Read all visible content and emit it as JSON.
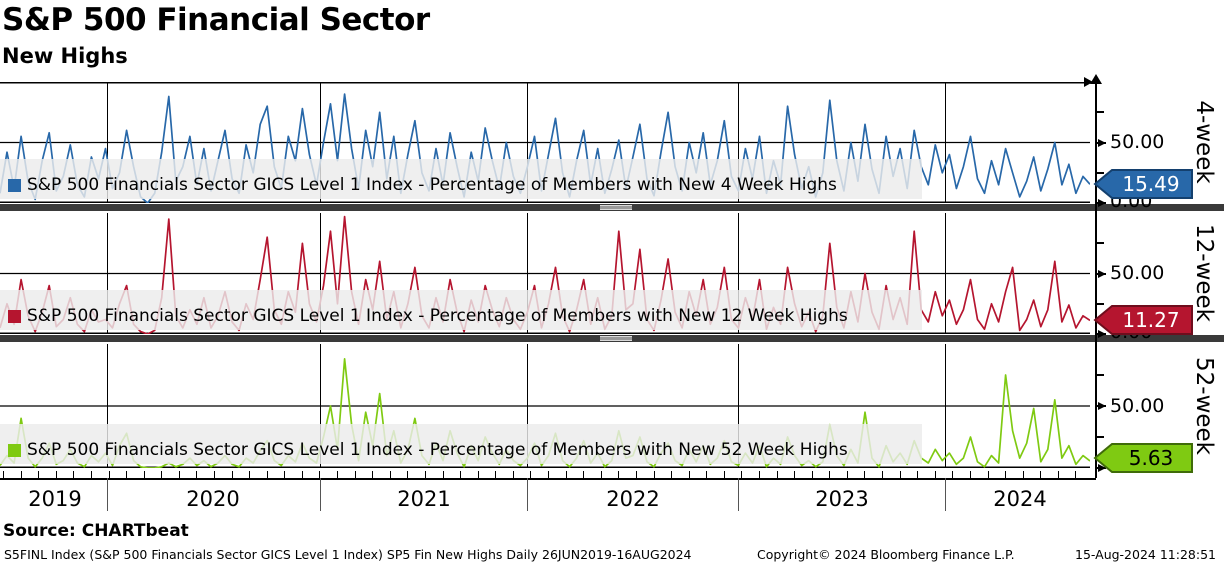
{
  "header": {
    "title": "S&P 500 Financial Sector",
    "subtitle": "New Highs"
  },
  "panels": [
    {
      "axis_label": "4-week",
      "legend": "S&P 500 Financials Sector GICS Level 1 Index - Percentage of Members with New 4 Week Highs",
      "last_value": "15.49",
      "tick_labels": [
        "50.00",
        "0.00"
      ],
      "color": "#2868a9",
      "badge_border": "#14406e",
      "badge_text_color": "#ffffff"
    },
    {
      "axis_label": "12-week",
      "legend": "S&P 500 Financials Sector GICS Level 1 Index - Percentage of Members with New 12 Week Highs",
      "last_value": "11.27",
      "tick_labels": [
        "50.00",
        "0.00"
      ],
      "color": "#b5152f",
      "badge_border": "#6e0d1d",
      "badge_text_color": "#ffffff"
    },
    {
      "axis_label": "52-week",
      "legend": "S&P 500 Financials Sector GICS Level 1 Index - Percentage of Members with New 52 Week Highs",
      "last_value": "5.63",
      "tick_labels": [
        "50.00",
        "0.00"
      ],
      "color": "#7fca12",
      "badge_border": "#3f6b09",
      "badge_text_color": "#000000"
    }
  ],
  "x_axis": {
    "years": [
      "2019",
      "2020",
      "2021",
      "2022",
      "2023",
      "2024"
    ]
  },
  "footer": {
    "source": "Source: CHARTbeat",
    "left": "S5FINL Index (S&P 500 Financials Sector GICS Level 1 Index) SP5 Fin New Highs  Daily 26JUN2019-16AUG2024",
    "copyright": "Copyright© 2024 Bloomberg Finance L.P.",
    "timestamp": "15-Aug-2024 11:28:51"
  },
  "chart_data": {
    "type": "line",
    "title": "S&P 500 Financial Sector - New Highs",
    "x_range": [
      "26JUN2019",
      "16AUG2024"
    ],
    "x_tick_labels": [
      "2019",
      "2020",
      "2021",
      "2022",
      "2023",
      "2024"
    ],
    "ylim": [
      0,
      100
    ],
    "y_tick_labels": [
      "50.00",
      "0.00"
    ],
    "grid": true,
    "legend_position": "inside-bottom-left",
    "series": [
      {
        "name": "S&P 500 Financials Sector GICS Level 1 Index - Percentage of Members with New 4 Week Highs",
        "panel": "4-week",
        "color": "#2868a9",
        "last_value": 15.49,
        "values": [
          8,
          42,
          12,
          55,
          18,
          3,
          35,
          58,
          10,
          22,
          48,
          15,
          5,
          38,
          20,
          45,
          12,
          25,
          60,
          30,
          5,
          0,
          8,
          42,
          88,
          18,
          30,
          55,
          15,
          45,
          10,
          35,
          60,
          20,
          8,
          48,
          25,
          65,
          80,
          30,
          12,
          55,
          35,
          78,
          40,
          15,
          50,
          82,
          35,
          90,
          45,
          12,
          60,
          30,
          75,
          20,
          55,
          8,
          40,
          68,
          25,
          10,
          45,
          15,
          58,
          30,
          5,
          42,
          18,
          62,
          35,
          12,
          50,
          22,
          8,
          30,
          55,
          10,
          40,
          70,
          25,
          5,
          35,
          60,
          15,
          45,
          8,
          28,
          52,
          12,
          38,
          65,
          20,
          6,
          42,
          75,
          30,
          10,
          50,
          25,
          58,
          15,
          35,
          68,
          22,
          10,
          45,
          20,
          55,
          8,
          35,
          15,
          80,
          40,
          12,
          30,
          5,
          25,
          85,
          35,
          10,
          50,
          18,
          65,
          28,
          8,
          55,
          22,
          45,
          12,
          60,
          30,
          15,
          48,
          25,
          40,
          12,
          30,
          55,
          20,
          8,
          35,
          15,
          45,
          25,
          5,
          18,
          38,
          10,
          28,
          50,
          15,
          32,
          8,
          22,
          15.49
        ]
      },
      {
        "name": "S&P 500 Financials Sector GICS Level 1 Index - Percentage of Members with New 12 Week Highs",
        "panel": "12-week",
        "color": "#b5152f",
        "last_value": 11.27,
        "values": [
          5,
          25,
          8,
          45,
          15,
          2,
          18,
          40,
          6,
          12,
          30,
          8,
          2,
          20,
          10,
          12,
          5,
          25,
          40,
          8,
          2,
          0,
          3,
          30,
          95,
          15,
          5,
          20,
          8,
          30,
          5,
          15,
          35,
          10,
          3,
          25,
          12,
          45,
          80,
          20,
          8,
          35,
          18,
          75,
          25,
          10,
          40,
          85,
          25,
          97,
          35,
          8,
          45,
          20,
          60,
          12,
          35,
          5,
          25,
          55,
          15,
          5,
          30,
          10,
          45,
          18,
          2,
          28,
          10,
          40,
          20,
          6,
          30,
          12,
          4,
          18,
          40,
          5,
          25,
          55,
          15,
          2,
          20,
          45,
          8,
          30,
          4,
          15,
          85,
          20,
          25,
          70,
          12,
          3,
          28,
          62,
          18,
          5,
          35,
          15,
          45,
          8,
          22,
          55,
          12,
          5,
          30,
          12,
          45,
          4,
          22,
          8,
          55,
          25,
          6,
          18,
          2,
          15,
          75,
          22,
          5,
          35,
          10,
          50,
          18,
          4,
          40,
          12,
          30,
          8,
          85,
          20,
          10,
          35,
          15,
          28,
          8,
          20,
          45,
          12,
          4,
          25,
          10,
          35,
          55,
          3,
          12,
          28,
          6,
          20,
          60,
          10,
          24,
          5,
          15,
          11.27
        ]
      },
      {
        "name": "S&P 500 Financials Sector GICS Level 1 Index - Percentage of Members with New 52 Week Highs",
        "panel": "52-week",
        "color": "#7fca12",
        "last_value": 5.63,
        "values": [
          2,
          10,
          4,
          40,
          8,
          1,
          8,
          20,
          3,
          6,
          15,
          4,
          1,
          10,
          5,
          12,
          2,
          18,
          28,
          6,
          1,
          0,
          0,
          1,
          4,
          1,
          3,
          8,
          2,
          6,
          1,
          4,
          10,
          3,
          1,
          8,
          4,
          14,
          22,
          6,
          2,
          10,
          5,
          20,
          8,
          4,
          25,
          50,
          15,
          88,
          35,
          6,
          45,
          18,
          60,
          10,
          30,
          4,
          15,
          40,
          10,
          3,
          20,
          6,
          30,
          12,
          1,
          18,
          6,
          25,
          12,
          3,
          15,
          6,
          2,
          8,
          20,
          2,
          10,
          28,
          6,
          1,
          8,
          22,
          4,
          12,
          1,
          6,
          30,
          8,
          10,
          25,
          5,
          1,
          12,
          20,
          6,
          2,
          15,
          5,
          18,
          3,
          8,
          22,
          5,
          2,
          12,
          4,
          18,
          1,
          8,
          3,
          25,
          10,
          2,
          6,
          1,
          5,
          35,
          10,
          2,
          15,
          4,
          45,
          8,
          1,
          18,
          5,
          12,
          3,
          22,
          8,
          4,
          15,
          6,
          12,
          3,
          8,
          25,
          5,
          1,
          10,
          4,
          75,
          30,
          8,
          20,
          48,
          5,
          15,
          55,
          8,
          18,
          3,
          10,
          5.63
        ]
      }
    ]
  }
}
